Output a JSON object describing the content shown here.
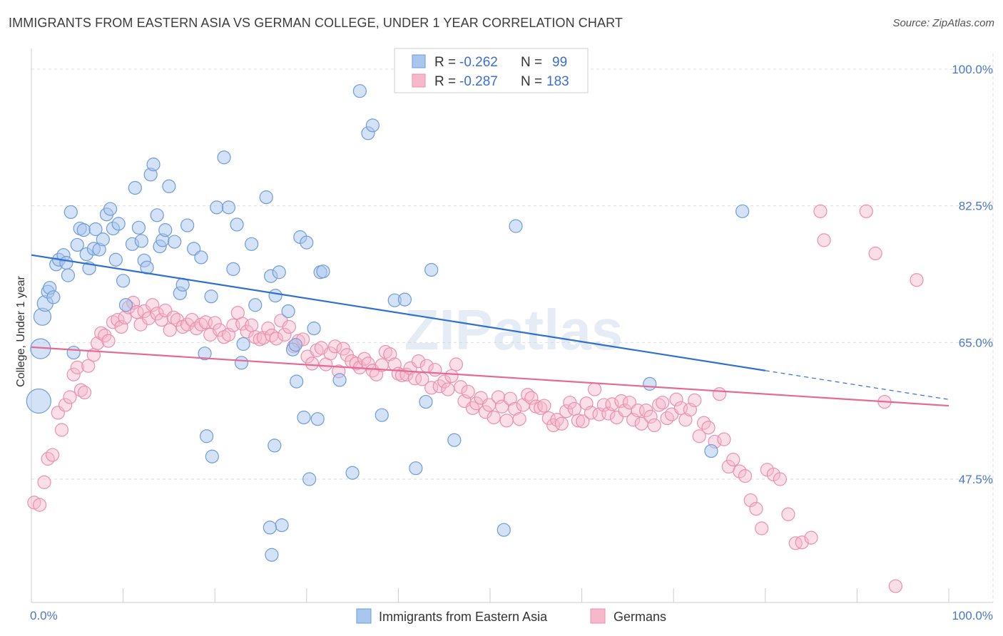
{
  "title": "IMMIGRANTS FROM EASTERN ASIA VS GERMAN COLLEGE, UNDER 1 YEAR CORRELATION CHART",
  "source": "Source: ZipAtlas.com",
  "watermark": "ZIPatlas",
  "legend_box": {
    "rows": [
      {
        "r_label": "R =",
        "r_value": "-0.262",
        "n_label": "N =",
        "n_value": "99"
      },
      {
        "r_label": "R =",
        "r_value": "-0.287",
        "n_label": "N =",
        "n_value": "183"
      }
    ]
  },
  "bottom_legend": [
    "Immigrants from Eastern Asia",
    "Germans"
  ],
  "colors": {
    "blue_fill": "#a8c6ee",
    "blue_stroke": "#6f9bd8",
    "blue_line": "#2f6fcf",
    "pink_fill": "#f7b8cb",
    "pink_stroke": "#eb8fac",
    "pink_line": "#e56a93",
    "tick_text": "#4a78c8",
    "grid": "#dddddd"
  },
  "chart_data": {
    "type": "scatter",
    "title": "IMMIGRANTS FROM EASTERN ASIA VS GERMAN COLLEGE, UNDER 1 YEAR CORRELATION CHART",
    "xlabel": "",
    "ylabel": "College, Under 1 year",
    "xlim": [
      0,
      100
    ],
    "ylim": [
      35,
      102
    ],
    "y_ticks": [
      47.5,
      65.0,
      82.5,
      100.0
    ],
    "y_tick_labels": [
      "47.5%",
      "65.0%",
      "82.5%",
      "100.0%"
    ],
    "x_tick_labels": [
      "0.0%",
      "100.0%"
    ],
    "grid": true,
    "legend_placement": "top-center",
    "series": [
      {
        "name": "Immigrants from Eastern Asia",
        "R": -0.262,
        "N": 99,
        "trend": {
          "x0": 0,
          "y0": 76.2,
          "x1": 80,
          "y1": 61.4,
          "dash_to_x": 100,
          "dash_to_y": 57.7
        },
        "points": [
          [
            0.8,
            57.5
          ],
          [
            1.0,
            64.2
          ],
          [
            1.2,
            68.3
          ],
          [
            1.5,
            70.0
          ],
          [
            1.8,
            71.5
          ],
          [
            2.0,
            72.0
          ],
          [
            2.4,
            70.8
          ],
          [
            2.7,
            75.0
          ],
          [
            3.0,
            75.6
          ],
          [
            3.5,
            76.2
          ],
          [
            3.8,
            75.2
          ],
          [
            4.0,
            73.6
          ],
          [
            4.3,
            81.7
          ],
          [
            4.6,
            63.7
          ],
          [
            5.0,
            77.5
          ],
          [
            5.3,
            79.6
          ],
          [
            5.7,
            79.4
          ],
          [
            6.0,
            76.3
          ],
          [
            6.3,
            74.5
          ],
          [
            6.8,
            77.0
          ],
          [
            7.0,
            79.5
          ],
          [
            7.4,
            76.9
          ],
          [
            7.8,
            78.2
          ],
          [
            8.2,
            81.4
          ],
          [
            8.6,
            82.1
          ],
          [
            8.9,
            79.6
          ],
          [
            9.2,
            75.6
          ],
          [
            9.5,
            80.2
          ],
          [
            10.0,
            72.9
          ],
          [
            10.3,
            69.8
          ],
          [
            11.0,
            77.6
          ],
          [
            11.3,
            84.8
          ],
          [
            11.7,
            79.7
          ],
          [
            12.0,
            78.0
          ],
          [
            12.3,
            75.5
          ],
          [
            12.6,
            74.6
          ],
          [
            13.0,
            86.5
          ],
          [
            13.3,
            87.8
          ],
          [
            13.7,
            81.3
          ],
          [
            14.0,
            77.3
          ],
          [
            14.3,
            78.1
          ],
          [
            14.6,
            79.4
          ],
          [
            15.0,
            85.0
          ],
          [
            15.6,
            77.9
          ],
          [
            16.2,
            71.3
          ],
          [
            16.5,
            72.4
          ],
          [
            17.0,
            80.0
          ],
          [
            17.7,
            77.0
          ],
          [
            18.5,
            75.9
          ],
          [
            18.9,
            63.6
          ],
          [
            19.6,
            70.9
          ],
          [
            20.2,
            82.3
          ],
          [
            21.0,
            88.7
          ],
          [
            21.5,
            82.3
          ],
          [
            22.0,
            74.4
          ],
          [
            22.4,
            80.1
          ],
          [
            22.9,
            62.4
          ],
          [
            23.1,
            64.8
          ],
          [
            24.0,
            77.6
          ],
          [
            24.4,
            69.8
          ],
          [
            25.6,
            83.6
          ],
          [
            26.1,
            73.5
          ],
          [
            26.6,
            71.0
          ],
          [
            27.0,
            74.0
          ],
          [
            28.0,
            69.0
          ],
          [
            28.5,
            64.1
          ],
          [
            29.3,
            78.5
          ],
          [
            30.0,
            77.8
          ],
          [
            30.8,
            66.8
          ],
          [
            31.5,
            74.0
          ],
          [
            31.8,
            74.1
          ],
          [
            33.6,
            60.2
          ],
          [
            35.8,
            97.2
          ],
          [
            36.7,
            91.8
          ],
          [
            37.2,
            92.8
          ],
          [
            39.6,
            70.4
          ],
          [
            40.7,
            70.5
          ],
          [
            43.6,
            74.3
          ],
          [
            52.8,
            79.9
          ],
          [
            67.4,
            59.7
          ],
          [
            77.5,
            81.8
          ],
          [
            26.5,
            51.8
          ],
          [
            28.9,
            60.0
          ],
          [
            30.3,
            47.5
          ],
          [
            29.7,
            55.4
          ],
          [
            19.1,
            53.0
          ],
          [
            19.7,
            50.4
          ],
          [
            28.8,
            64.7
          ],
          [
            26.2,
            37.8
          ],
          [
            31.2,
            55.2
          ],
          [
            27.3,
            41.6
          ],
          [
            38.2,
            55.7
          ],
          [
            43.0,
            57.4
          ],
          [
            46.1,
            52.5
          ],
          [
            51.5,
            41.0
          ],
          [
            74.1,
            51.1
          ],
          [
            35.0,
            48.3
          ],
          [
            41.9,
            48.9
          ],
          [
            26.0,
            41.3
          ]
        ]
      },
      {
        "name": "Germans",
        "R": -0.287,
        "N": 183,
        "trend": {
          "x0": 0,
          "y0": 64.4,
          "x1": 100,
          "y1": 56.9
        },
        "points": [
          [
            0.3,
            44.5
          ],
          [
            0.9,
            44.2
          ],
          [
            1.4,
            47.1
          ],
          [
            1.8,
            50.1
          ],
          [
            2.3,
            50.6
          ],
          [
            2.9,
            56.0
          ],
          [
            3.3,
            53.8
          ],
          [
            3.7,
            57.0
          ],
          [
            4.2,
            58.0
          ],
          [
            4.6,
            60.9
          ],
          [
            5.0,
            61.8
          ],
          [
            5.4,
            58.9
          ],
          [
            5.8,
            58.6
          ],
          [
            6.2,
            62.0
          ],
          [
            6.8,
            63.4
          ],
          [
            7.2,
            64.9
          ],
          [
            7.6,
            66.2
          ],
          [
            8.0,
            65.9
          ],
          [
            8.4,
            65.2
          ],
          [
            8.9,
            67.6
          ],
          [
            9.4,
            67.9
          ],
          [
            9.8,
            67.0
          ],
          [
            10.2,
            68.2
          ],
          [
            10.6,
            69.5
          ],
          [
            11.1,
            70.1
          ],
          [
            11.5,
            68.9
          ],
          [
            11.9,
            67.3
          ],
          [
            12.3,
            69.0
          ],
          [
            12.8,
            68.1
          ],
          [
            13.2,
            69.8
          ],
          [
            13.7,
            68.7
          ],
          [
            14.2,
            67.9
          ],
          [
            14.6,
            69.1
          ],
          [
            15.1,
            66.6
          ],
          [
            15.5,
            68.2
          ],
          [
            15.9,
            67.9
          ],
          [
            16.5,
            67.0
          ],
          [
            17.0,
            67.3
          ],
          [
            17.5,
            67.9
          ],
          [
            18.0,
            66.8
          ],
          [
            18.5,
            67.3
          ],
          [
            19.0,
            67.6
          ],
          [
            19.5,
            66.0
          ],
          [
            20.0,
            67.5
          ],
          [
            20.5,
            66.6
          ],
          [
            21.0,
            65.7
          ],
          [
            21.5,
            66.0
          ],
          [
            22.0,
            67.2
          ],
          [
            22.5,
            68.8
          ],
          [
            23.0,
            67.4
          ],
          [
            23.5,
            66.4
          ],
          [
            24.0,
            67.2
          ],
          [
            24.4,
            65.7
          ],
          [
            24.9,
            65.4
          ],
          [
            25.3,
            65.6
          ],
          [
            25.8,
            66.8
          ],
          [
            26.2,
            65.9
          ],
          [
            26.7,
            65.5
          ],
          [
            27.2,
            67.8
          ],
          [
            27.6,
            66.0
          ],
          [
            28.1,
            67.0
          ],
          [
            28.6,
            64.5
          ],
          [
            29.1,
            65.2
          ],
          [
            29.6,
            65.4
          ],
          [
            30.1,
            63.2
          ],
          [
            30.6,
            62.3
          ],
          [
            31.1,
            64.0
          ],
          [
            31.6,
            64.3
          ],
          [
            32.1,
            62.2
          ],
          [
            32.6,
            63.6
          ],
          [
            33.1,
            64.5
          ],
          [
            33.5,
            61.3
          ],
          [
            34.0,
            64.2
          ],
          [
            34.4,
            63.4
          ],
          [
            34.9,
            62.6
          ],
          [
            35.4,
            62.3
          ],
          [
            35.8,
            61.8
          ],
          [
            36.3,
            62.9
          ],
          [
            36.7,
            62.3
          ],
          [
            37.2,
            61.4
          ],
          [
            37.6,
            60.9
          ],
          [
            38.2,
            62.1
          ],
          [
            38.6,
            63.8
          ],
          [
            39.1,
            63.5
          ],
          [
            39.6,
            62.2
          ],
          [
            40.0,
            61.0
          ],
          [
            40.4,
            60.8
          ],
          [
            40.9,
            60.9
          ],
          [
            41.3,
            61.7
          ],
          [
            41.8,
            60.4
          ],
          [
            42.2,
            62.6
          ],
          [
            42.6,
            60.3
          ],
          [
            43.1,
            62.0
          ],
          [
            43.6,
            59.2
          ],
          [
            44.0,
            61.5
          ],
          [
            44.5,
            59.4
          ],
          [
            45.0,
            60.0
          ],
          [
            45.4,
            59.0
          ],
          [
            45.8,
            60.7
          ],
          [
            46.3,
            62.2
          ],
          [
            46.8,
            59.3
          ],
          [
            47.2,
            57.5
          ],
          [
            47.6,
            58.7
          ],
          [
            48.1,
            56.6
          ],
          [
            48.5,
            57.2
          ],
          [
            49.0,
            57.9
          ],
          [
            49.5,
            56.1
          ],
          [
            49.9,
            57.0
          ],
          [
            50.4,
            55.4
          ],
          [
            50.9,
            58.0
          ],
          [
            51.3,
            56.8
          ],
          [
            51.8,
            55.0
          ],
          [
            52.2,
            57.8
          ],
          [
            52.7,
            56.5
          ],
          [
            53.2,
            55.2
          ],
          [
            53.6,
            57.0
          ],
          [
            54.1,
            58.3
          ],
          [
            54.5,
            57.9
          ],
          [
            55.0,
            56.8
          ],
          [
            55.5,
            56.6
          ],
          [
            55.9,
            56.9
          ],
          [
            56.4,
            55.3
          ],
          [
            56.9,
            54.4
          ],
          [
            57.3,
            55.1
          ],
          [
            57.8,
            54.6
          ],
          [
            58.3,
            56.2
          ],
          [
            58.7,
            57.3
          ],
          [
            59.2,
            56.5
          ],
          [
            59.6,
            55.0
          ],
          [
            60.1,
            54.9
          ],
          [
            60.5,
            57.2
          ],
          [
            61.0,
            56.0
          ],
          [
            61.4,
            59.0
          ],
          [
            61.9,
            55.8
          ],
          [
            62.4,
            57.0
          ],
          [
            62.9,
            55.9
          ],
          [
            63.3,
            57.1
          ],
          [
            63.8,
            55.4
          ],
          [
            64.3,
            57.5
          ],
          [
            64.7,
            56.3
          ],
          [
            65.2,
            57.3
          ],
          [
            65.6,
            55.1
          ],
          [
            66.1,
            56.3
          ],
          [
            66.5,
            54.6
          ],
          [
            67.0,
            56.3
          ],
          [
            67.5,
            55.5
          ],
          [
            67.9,
            54.4
          ],
          [
            68.4,
            57.0
          ],
          [
            68.8,
            57.3
          ],
          [
            69.3,
            55.3
          ],
          [
            69.8,
            55.8
          ],
          [
            70.3,
            57.7
          ],
          [
            70.8,
            56.6
          ],
          [
            71.3,
            55.1
          ],
          [
            71.8,
            56.4
          ],
          [
            72.3,
            57.6
          ],
          [
            72.8,
            53.0
          ],
          [
            73.3,
            54.7
          ],
          [
            73.8,
            54.1
          ],
          [
            74.5,
            52.3
          ],
          [
            75.0,
            58.4
          ],
          [
            75.5,
            52.6
          ],
          [
            76.0,
            49.1
          ],
          [
            76.5,
            50.0
          ],
          [
            77.2,
            48.5
          ],
          [
            77.8,
            47.9
          ],
          [
            78.4,
            44.8
          ],
          [
            79.0,
            43.7
          ],
          [
            79.6,
            41.2
          ],
          [
            80.2,
            48.7
          ],
          [
            80.9,
            48.1
          ],
          [
            81.6,
            47.5
          ],
          [
            82.5,
            43.0
          ],
          [
            83.3,
            39.3
          ],
          [
            84.0,
            39.4
          ],
          [
            85.0,
            40.0
          ],
          [
            86.0,
            81.8
          ],
          [
            86.4,
            78.1
          ],
          [
            91.0,
            81.8
          ],
          [
            92.0,
            76.4
          ],
          [
            96.5,
            73.0
          ],
          [
            93.0,
            57.4
          ],
          [
            94.2,
            33.8
          ]
        ]
      }
    ]
  }
}
